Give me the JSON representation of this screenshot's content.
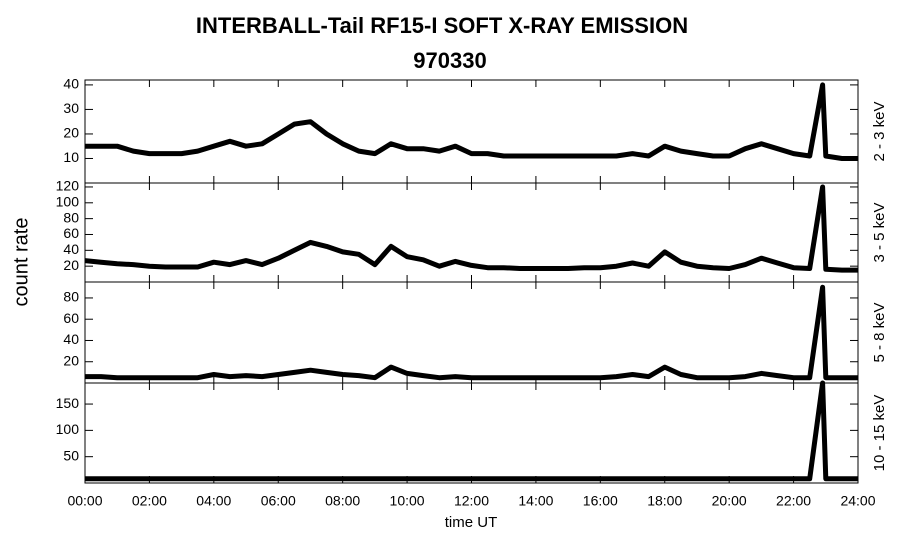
{
  "title": "INTERBALL-Tail RF15-I SOFT X-RAY EMISSION",
  "subtitle": "970330",
  "y_label": "count rate",
  "x_label": "time UT",
  "chart_data": [
    {
      "type": "line",
      "panel_label": "2 - 3 keV",
      "color": "#000000",
      "x": [
        0,
        0.5,
        1,
        1.5,
        2,
        2.5,
        3,
        3.5,
        4,
        4.5,
        5,
        5.5,
        6,
        6.5,
        7,
        7.5,
        8,
        8.5,
        9,
        9.5,
        10,
        10.5,
        11,
        11.5,
        12,
        12.5,
        13,
        13.5,
        14,
        14.5,
        15,
        15.5,
        16,
        16.5,
        17,
        17.5,
        18,
        18.5,
        19,
        19.5,
        20,
        20.5,
        21,
        21.5,
        22,
        22.5,
        22.9,
        23,
        23.5,
        24
      ],
      "values": [
        15,
        15,
        15,
        13,
        12,
        12,
        12,
        13,
        15,
        17,
        15,
        16,
        20,
        24,
        25,
        20,
        16,
        13,
        12,
        16,
        14,
        14,
        13,
        15,
        12,
        12,
        11,
        11,
        11,
        11,
        11,
        11,
        11,
        11,
        12,
        11,
        15,
        13,
        12,
        11,
        11,
        14,
        16,
        14,
        12,
        11,
        40,
        11,
        10,
        10
      ],
      "xlim": [
        0,
        24
      ],
      "xticks": [
        0,
        2,
        4,
        6,
        8,
        10,
        12,
        14,
        16,
        18,
        20,
        22,
        24
      ],
      "ylim": [
        0,
        42
      ],
      "yticks": [
        10,
        20,
        30,
        40
      ]
    },
    {
      "type": "line",
      "panel_label": "3 - 5 keV",
      "color": "#000000",
      "x": [
        0,
        0.5,
        1,
        1.5,
        2,
        2.5,
        3,
        3.5,
        4,
        4.5,
        5,
        5.5,
        6,
        6.5,
        7,
        7.5,
        8,
        8.5,
        9,
        9.5,
        10,
        10.5,
        11,
        11.5,
        12,
        12.5,
        13,
        13.5,
        14,
        14.5,
        15,
        15.5,
        16,
        16.5,
        17,
        17.5,
        18,
        18.5,
        19,
        19.5,
        20,
        20.5,
        21,
        21.5,
        22,
        22.5,
        22.9,
        23,
        23.5,
        24
      ],
      "values": [
        27,
        25,
        23,
        22,
        20,
        19,
        19,
        19,
        25,
        22,
        27,
        22,
        30,
        40,
        50,
        45,
        38,
        35,
        22,
        45,
        32,
        28,
        20,
        26,
        21,
        18,
        18,
        17,
        17,
        17,
        17,
        18,
        18,
        20,
        24,
        20,
        38,
        25,
        20,
        18,
        17,
        22,
        30,
        24,
        18,
        17,
        120,
        16,
        15,
        15
      ],
      "xlim": [
        0,
        24
      ],
      "xticks": [
        0,
        2,
        4,
        6,
        8,
        10,
        12,
        14,
        16,
        18,
        20,
        22,
        24
      ],
      "ylim": [
        0,
        125
      ],
      "yticks": [
        20,
        40,
        60,
        80,
        100,
        120
      ]
    },
    {
      "type": "line",
      "panel_label": "5 - 8 keV",
      "color": "#000000",
      "x": [
        0,
        0.5,
        1,
        1.5,
        2,
        2.5,
        3,
        3.5,
        4,
        4.5,
        5,
        5.5,
        6,
        6.5,
        7,
        7.5,
        8,
        8.5,
        9,
        9.5,
        10,
        10.5,
        11,
        11.5,
        12,
        12.5,
        13,
        13.5,
        14,
        14.5,
        15,
        15.5,
        16,
        16.5,
        17,
        17.5,
        18,
        18.5,
        19,
        19.5,
        20,
        20.5,
        21,
        21.5,
        22,
        22.5,
        22.9,
        23,
        23.5,
        24
      ],
      "values": [
        6,
        6,
        5,
        5,
        5,
        5,
        5,
        5,
        8,
        6,
        7,
        6,
        8,
        10,
        12,
        10,
        8,
        7,
        5,
        15,
        9,
        7,
        5,
        6,
        5,
        5,
        5,
        5,
        5,
        5,
        5,
        5,
        5,
        6,
        8,
        6,
        15,
        8,
        5,
        5,
        5,
        6,
        9,
        7,
        5,
        5,
        90,
        5,
        5,
        5
      ],
      "xlim": [
        0,
        24
      ],
      "xticks": [
        0,
        2,
        4,
        6,
        8,
        10,
        12,
        14,
        16,
        18,
        20,
        22,
        24
      ],
      "ylim": [
        0,
        95
      ],
      "yticks": [
        20,
        40,
        60,
        80
      ]
    },
    {
      "type": "line",
      "panel_label": "10 - 15 keV",
      "color": "#000000",
      "x": [
        0,
        0.5,
        1,
        1.5,
        2,
        2.5,
        3,
        3.5,
        4,
        4.5,
        5,
        5.5,
        6,
        6.5,
        7,
        7.5,
        8,
        8.5,
        9,
        9.5,
        10,
        10.5,
        11,
        11.5,
        12,
        12.5,
        13,
        13.5,
        14,
        14.5,
        15,
        15.5,
        16,
        16.5,
        17,
        17.5,
        18,
        18.5,
        19,
        19.5,
        20,
        20.5,
        21,
        21.5,
        22,
        22.5,
        22.9,
        23,
        23.5,
        24
      ],
      "values": [
        8,
        8,
        8,
        8,
        8,
        8,
        8,
        8,
        8,
        8,
        8,
        8,
        8,
        8,
        8,
        8,
        8,
        8,
        8,
        8,
        8,
        8,
        8,
        8,
        8,
        8,
        8,
        8,
        8,
        8,
        8,
        8,
        8,
        8,
        8,
        8,
        8,
        8,
        8,
        8,
        8,
        8,
        8,
        8,
        8,
        8,
        190,
        8,
        8,
        8
      ],
      "xlim": [
        0,
        24
      ],
      "xticks": [
        {
          "value": 0,
          "label": "00:00"
        },
        {
          "value": 2,
          "label": "02:00"
        },
        {
          "value": 4,
          "label": "04:00"
        },
        {
          "value": 6,
          "label": "06:00"
        },
        {
          "value": 8,
          "label": "08:00"
        },
        {
          "value": 10,
          "label": "10:00"
        },
        {
          "value": 12,
          "label": "12:00"
        },
        {
          "value": 14,
          "label": "14:00"
        },
        {
          "value": 16,
          "label": "16:00"
        },
        {
          "value": 18,
          "label": "18:00"
        },
        {
          "value": 20,
          "label": "20:00"
        },
        {
          "value": 22,
          "label": "22:00"
        },
        {
          "value": 24,
          "label": "24:00"
        }
      ],
      "ylim": [
        0,
        190
      ],
      "yticks": [
        50,
        100,
        150
      ]
    }
  ]
}
